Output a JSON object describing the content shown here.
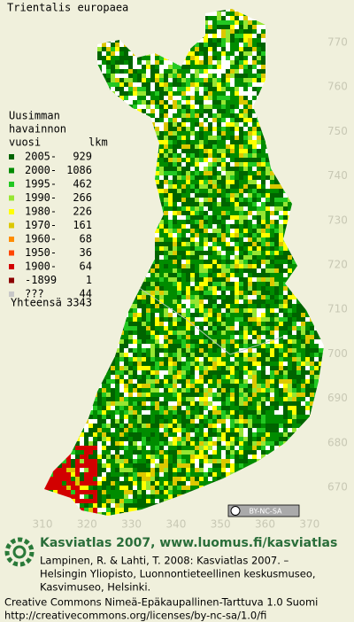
{
  "title": "Trientalis europaea",
  "legend": {
    "heading": [
      "Uusimman",
      "havainnon",
      "vuosi"
    ],
    "count_heading": "lkm",
    "entries": [
      {
        "label": "2005-",
        "count": 929,
        "color": "#006400"
      },
      {
        "label": "2000-",
        "count": 1086,
        "color": "#008c00"
      },
      {
        "label": "1995-",
        "count": 462,
        "color": "#22c822"
      },
      {
        "label": "1990-",
        "count": 266,
        "color": "#96e632"
      },
      {
        "label": "1980-",
        "count": 226,
        "color": "#ffff00"
      },
      {
        "label": "1970-",
        "count": 161,
        "color": "#dcc800"
      },
      {
        "label": "1960-",
        "count": 68,
        "color": "#ff8c00"
      },
      {
        "label": "1950-",
        "count": 36,
        "color": "#ff4600"
      },
      {
        "label": "1900-",
        "count": 64,
        "color": "#d20000"
      },
      {
        "label": "-1899",
        "count": 1,
        "color": "#8c0000"
      },
      {
        "label": "???",
        "count": 44,
        "color": "#c8c8c8"
      }
    ],
    "total_label": "Yhteensä",
    "total": 3343
  },
  "grid": {
    "northing_ticks": [
      770,
      760,
      750,
      740,
      730,
      720,
      710,
      700,
      690,
      680,
      670
    ],
    "easting_ticks": [
      310,
      320,
      330,
      340,
      350,
      360,
      370
    ]
  },
  "license_badge": "BY-NC-SA",
  "footer": {
    "atlas": "Kasviatlas 2007, www.luomus.fi/kasviatlas",
    "citation": [
      "Lampinen, R. & Lahti, T. 2008: Kasviatlas 2007. –",
      "Helsingin Yliopisto, Luonnontieteellinen keskusmuseo,",
      "Kasvimuseo, Helsinki."
    ],
    "license": "Creative Commons Nimeä-Epäkaupallinen-Tarttuva 1.0 Suomi",
    "url": "http://creativecommons.org/licenses/by-nc-sa/1.0/fi"
  }
}
